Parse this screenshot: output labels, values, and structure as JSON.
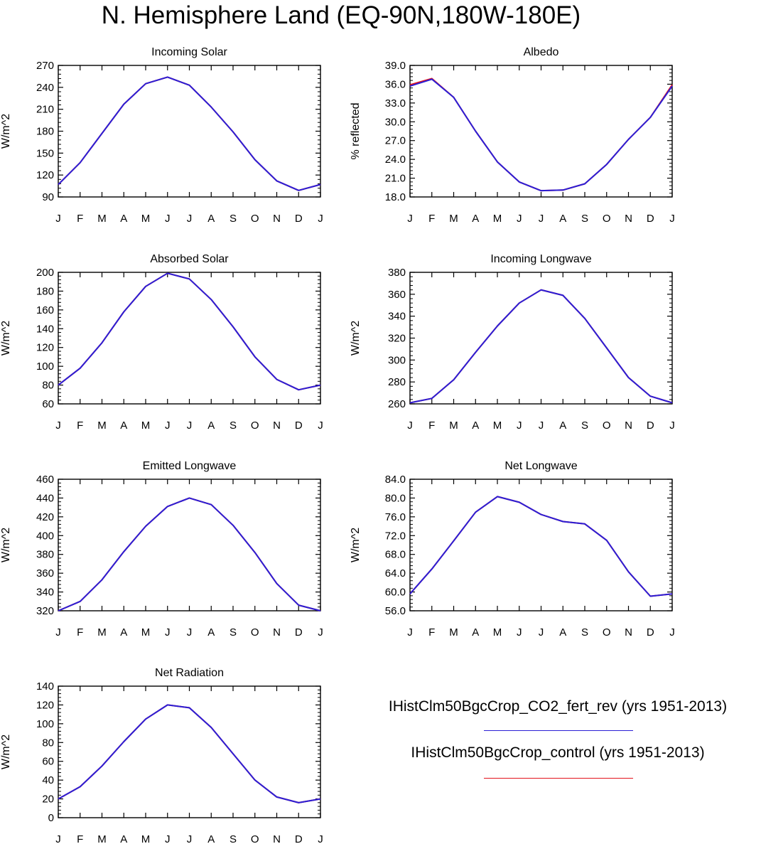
{
  "title": "N. Hemisphere Land (EQ-90N,180W-180E)",
  "colors": {
    "case1": "#2b1fd6",
    "case2": "#e3121b",
    "axis": "#000000"
  },
  "legend": [
    {
      "label": "IHistClm50BgcCrop_CO2_fert_rev (yrs 1951-2013)",
      "color": "#2b1fd6"
    },
    {
      "label": "IHistClm50BgcCrop_control (yrs 1951-2013)",
      "color": "#e3121b"
    }
  ],
  "chart_data": [
    {
      "type": "line",
      "title": "Incoming Solar",
      "ylabel": "W/m^2",
      "xlabel": "",
      "categories": [
        "J",
        "F",
        "M",
        "A",
        "M",
        "J",
        "J",
        "A",
        "S",
        "O",
        "N",
        "D",
        "J"
      ],
      "ylim": [
        90,
        270
      ],
      "yticks": [
        "90",
        "120",
        "150",
        "180",
        "210",
        "240",
        "270"
      ],
      "series": [
        {
          "values": [
            107,
            137,
            177,
            217,
            245,
            254,
            243,
            213,
            179,
            141,
            112,
            99,
            107
          ]
        },
        {
          "values": [
            107,
            137,
            177,
            217,
            245,
            254,
            243,
            213,
            179,
            141,
            112,
            99,
            107
          ]
        }
      ]
    },
    {
      "type": "line",
      "title": "Albedo",
      "ylabel": "% reflected",
      "xlabel": "",
      "categories": [
        "J",
        "F",
        "M",
        "A",
        "M",
        "J",
        "J",
        "A",
        "S",
        "O",
        "N",
        "D",
        "J"
      ],
      "ylim": [
        18.0,
        39.0
      ],
      "yticks": [
        "18.0",
        "21.0",
        "24.0",
        "27.0",
        "30.0",
        "33.0",
        "36.0",
        "39.0"
      ],
      "series": [
        {
          "values": [
            35.7,
            36.8,
            33.9,
            28.5,
            23.6,
            20.4,
            19.0,
            19.1,
            20.1,
            23.2,
            27.2,
            30.7,
            35.7
          ]
        },
        {
          "values": [
            35.9,
            36.9,
            33.9,
            28.5,
            23.6,
            20.4,
            19.0,
            19.1,
            20.1,
            23.2,
            27.2,
            30.7,
            35.9
          ]
        }
      ]
    },
    {
      "type": "line",
      "title": "Absorbed Solar",
      "ylabel": "W/m^2",
      "xlabel": "",
      "categories": [
        "J",
        "F",
        "M",
        "A",
        "M",
        "J",
        "J",
        "A",
        "S",
        "O",
        "N",
        "D",
        "J"
      ],
      "ylim": [
        60,
        200
      ],
      "yticks": [
        "60",
        "80",
        "100",
        "120",
        "140",
        "160",
        "180",
        "200"
      ],
      "series": [
        {
          "values": [
            80,
            98,
            125,
            158,
            185,
            199,
            193,
            171,
            142,
            110,
            86,
            75,
            80
          ]
        },
        {
          "values": [
            80,
            98,
            125,
            158,
            185,
            199,
            193,
            171,
            142,
            110,
            86,
            75,
            80
          ]
        }
      ]
    },
    {
      "type": "line",
      "title": "Incoming Longwave",
      "ylabel": "W/m^2",
      "xlabel": "",
      "categories": [
        "J",
        "F",
        "M",
        "A",
        "M",
        "J",
        "J",
        "A",
        "S",
        "O",
        "N",
        "D",
        "J"
      ],
      "ylim": [
        260,
        380
      ],
      "yticks": [
        "260",
        "280",
        "300",
        "320",
        "340",
        "360",
        "380"
      ],
      "series": [
        {
          "values": [
            261,
            265,
            282,
            307,
            331,
            352,
            364,
            359,
            338,
            311,
            284,
            267,
            261
          ]
        },
        {
          "values": [
            261,
            265,
            282,
            307,
            331,
            352,
            364,
            359,
            338,
            311,
            284,
            267,
            261
          ]
        }
      ]
    },
    {
      "type": "line",
      "title": "Emitted Longwave",
      "ylabel": "W/m^2",
      "xlabel": "",
      "categories": [
        "J",
        "F",
        "M",
        "A",
        "M",
        "J",
        "J",
        "A",
        "S",
        "O",
        "N",
        "D",
        "J"
      ],
      "ylim": [
        320,
        460
      ],
      "yticks": [
        "320",
        "340",
        "360",
        "380",
        "400",
        "420",
        "440",
        "460"
      ],
      "series": [
        {
          "values": [
            320,
            330,
            353,
            383,
            410,
            431,
            440,
            433,
            411,
            382,
            349,
            326,
            320
          ]
        },
        {
          "values": [
            320,
            330,
            353,
            383,
            410,
            431,
            440,
            433,
            411,
            382,
            349,
            326,
            320
          ]
        }
      ]
    },
    {
      "type": "line",
      "title": "Net Longwave",
      "ylabel": "W/m^2",
      "xlabel": "",
      "categories": [
        "J",
        "F",
        "M",
        "A",
        "M",
        "J",
        "J",
        "A",
        "S",
        "O",
        "N",
        "D",
        "J"
      ],
      "ylim": [
        56.0,
        84.0
      ],
      "yticks": [
        "56.0",
        "60.0",
        "64.0",
        "68.0",
        "72.0",
        "76.0",
        "80.0",
        "84.0"
      ],
      "series": [
        {
          "values": [
            59.6,
            64.9,
            70.9,
            77.0,
            80.3,
            79.1,
            76.5,
            75.0,
            74.5,
            71.0,
            64.3,
            59.1,
            59.6
          ]
        },
        {
          "values": [
            59.6,
            64.9,
            70.9,
            77.0,
            80.3,
            79.1,
            76.5,
            75.0,
            74.5,
            71.0,
            64.3,
            59.1,
            59.6
          ]
        }
      ]
    },
    {
      "type": "line",
      "title": "Net Radiation",
      "ylabel": "W/m^2",
      "xlabel": "",
      "categories": [
        "J",
        "F",
        "M",
        "A",
        "M",
        "J",
        "J",
        "A",
        "S",
        "O",
        "N",
        "D",
        "J"
      ],
      "ylim": [
        0,
        140
      ],
      "yticks": [
        "0",
        "20",
        "40",
        "60",
        "80",
        "100",
        "120",
        "140"
      ],
      "series": [
        {
          "values": [
            20,
            33,
            55,
            81,
            105,
            120,
            117,
            96,
            68,
            40,
            22,
            16,
            20
          ]
        },
        {
          "values": [
            20,
            33,
            55,
            81,
            105,
            120,
            117,
            96,
            68,
            40,
            22,
            16,
            20
          ]
        }
      ]
    }
  ]
}
